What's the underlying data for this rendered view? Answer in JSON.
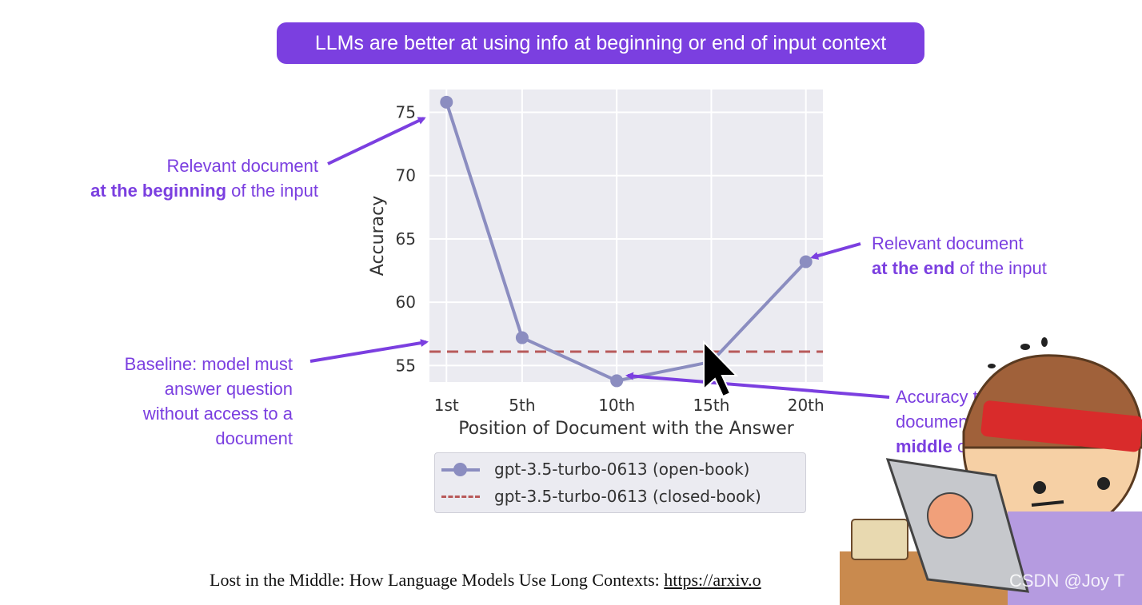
{
  "banner": {
    "text": "LLMs are better at using info at beginning or end of input context"
  },
  "annotations": {
    "beginning": {
      "line1": "Relevant document",
      "bold": "at the beginning",
      "rest": " of the input"
    },
    "baseline": {
      "lines": [
        "Baseline: model must",
        "answer question",
        "without access to a",
        "document"
      ]
    },
    "end": {
      "line1": "Relevant document",
      "bold": "at the end",
      "rest": " of the input"
    },
    "middle": {
      "line1": "Accuracy t",
      "line2": "documen",
      "bold": "middle",
      "rest": " of"
    }
  },
  "citation": {
    "text": "Lost in the Middle: How Language Models Use Long Contexts: ",
    "link": "https://arxiv.o"
  },
  "watermark": "CSDN @Joy T",
  "colors": {
    "accent": "#7b3fe0",
    "open_book": "#8b8dc0",
    "closed_book": "#b85a5a",
    "plot_bg": "#ebebf1"
  },
  "chart_data": {
    "type": "line",
    "xlabel": "Position of Document with the Answer",
    "ylabel": "Accuracy",
    "categories": [
      "1st",
      "5th",
      "10th",
      "15th",
      "20th"
    ],
    "x": [
      1,
      5,
      10,
      15,
      20
    ],
    "yticks": [
      55,
      60,
      65,
      70,
      75
    ],
    "ylim": [
      53.7,
      76.8
    ],
    "xlim": [
      0.1,
      20.9
    ],
    "grid": true,
    "legend_placement": "bottom",
    "series": [
      {
        "name": "gpt-3.5-turbo-0613 (open-book)",
        "style": "line-marker",
        "values": [
          75.8,
          57.2,
          53.8,
          55.3,
          63.2
        ]
      },
      {
        "name": "gpt-3.5-turbo-0613 (closed-book)",
        "style": "dashed",
        "values": [
          56.1,
          56.1,
          56.1,
          56.1,
          56.1
        ]
      }
    ]
  }
}
